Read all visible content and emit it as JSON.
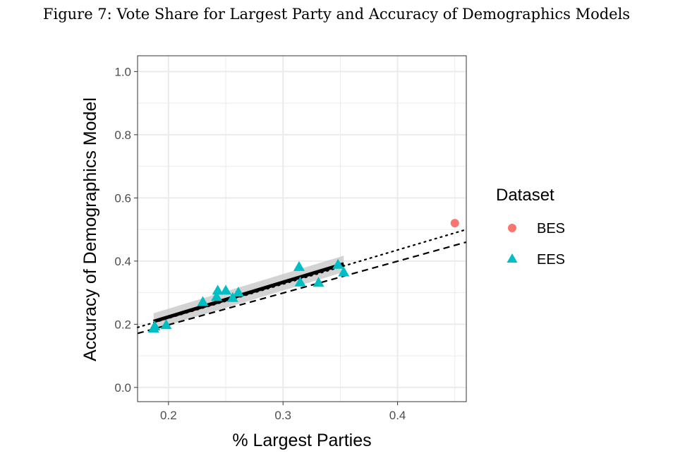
{
  "figure": {
    "caption": "Figure 7: Vote Share for Largest Party and Accuracy of Demographics Models"
  },
  "colors": {
    "bes": "#F8766D",
    "ees": "#00BFC4",
    "grid": "#ebebeb",
    "ribbon": "#c8c8c8"
  },
  "chart_data": {
    "type": "scatter",
    "title": "Figure 7: Vote Share for Largest Party and Accuracy of Demographics Models",
    "xlabel": "% Largest Parties",
    "ylabel": "Accuracy of Demographics Model",
    "xlim": [
      0.173,
      0.46
    ],
    "ylim": [
      -0.045,
      1.05
    ],
    "x_ticks": [
      0.2,
      0.3,
      0.4
    ],
    "x_tick_labels": [
      "0.2",
      "0.3",
      "0.4"
    ],
    "y_ticks": [
      0.0,
      0.2,
      0.4,
      0.6,
      0.8,
      1.0
    ],
    "y_tick_labels": [
      "0.0",
      "0.2",
      "0.4",
      "0.6",
      "0.8",
      "1.0"
    ],
    "grid": true,
    "legend": {
      "title": "Dataset",
      "position": "right",
      "entries": [
        "BES",
        "EES"
      ]
    },
    "series": [
      {
        "name": "BES",
        "marker": "circle",
        "x": [
          0.45
        ],
        "y": [
          0.52
        ]
      },
      {
        "name": "EES",
        "marker": "triangle",
        "x": [
          0.187,
          0.188,
          0.198,
          0.23,
          0.242,
          0.243,
          0.25,
          0.256,
          0.261,
          0.314,
          0.315,
          0.331,
          0.348,
          0.353
        ],
        "y": [
          0.186,
          0.193,
          0.197,
          0.27,
          0.286,
          0.306,
          0.306,
          0.283,
          0.3,
          0.381,
          0.332,
          0.331,
          0.388,
          0.364
        ]
      }
    ],
    "fit_lines": [
      {
        "name": "EES fit",
        "style": "solid",
        "x": [
          0.187,
          0.353
        ],
        "y": [
          0.209,
          0.391
        ],
        "ribbon_lower": [
          0.183,
          0.365
        ],
        "ribbon_upper": [
          0.235,
          0.417
        ]
      },
      {
        "name": "reference dotted",
        "style": "dotted",
        "x": [
          0.173,
          0.46
        ],
        "y": [
          0.19,
          0.5
        ]
      },
      {
        "name": "reference dashed",
        "style": "dashed",
        "x": [
          0.173,
          0.46
        ],
        "y": [
          0.171,
          0.46
        ]
      }
    ]
  }
}
